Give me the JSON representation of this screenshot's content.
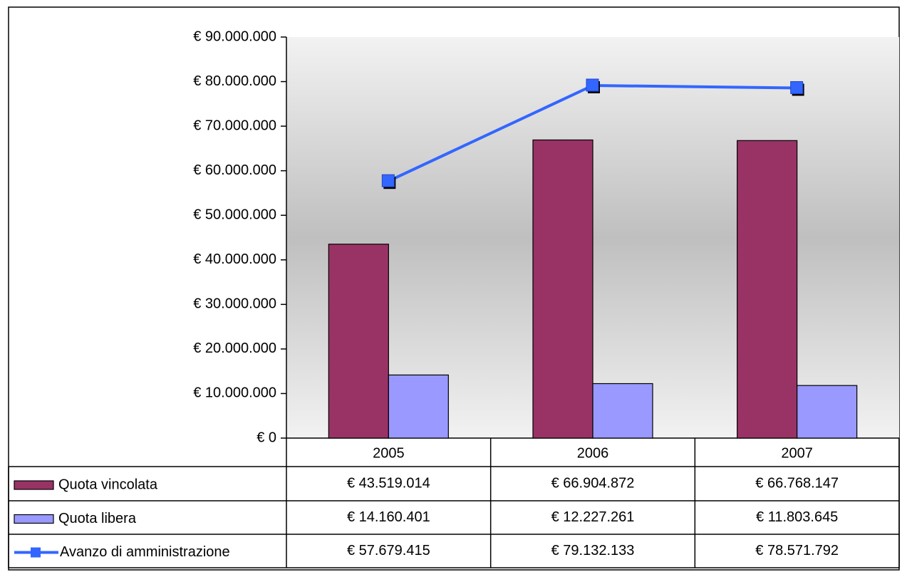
{
  "chart_data": {
    "type": "bar",
    "categories": [
      "2005",
      "2006",
      "2007"
    ],
    "series": [
      {
        "name": "Quota vincolata",
        "type": "bar",
        "color": "#993366",
        "values": [
          43519014,
          66904872,
          66768147
        ],
        "value_labels": [
          "€ 43.519.014",
          "€ 66.904.872",
          "€ 66.768.147"
        ]
      },
      {
        "name": "Quota libera",
        "type": "bar",
        "color": "#9999ff",
        "values": [
          14160401,
          12227261,
          11803645
        ],
        "value_labels": [
          "€ 14.160.401",
          "€ 12.227.261",
          "€ 11.803.645"
        ]
      },
      {
        "name": "Avanzo di amministrazione",
        "type": "line",
        "color": "#3366ff",
        "values": [
          57679415,
          79132133,
          78571792
        ],
        "value_labels": [
          "€ 57.679.415",
          "€ 79.132.133",
          "€ 78.571.792"
        ]
      }
    ],
    "ylim": [
      0,
      90000000
    ],
    "yticks": [
      {
        "value": 0,
        "label": "€ 0"
      },
      {
        "value": 10000000,
        "label": "€ 10.000.000"
      },
      {
        "value": 20000000,
        "label": "€ 20.000.000"
      },
      {
        "value": 30000000,
        "label": "€ 30.000.000"
      },
      {
        "value": 40000000,
        "label": "€ 40.000.000"
      },
      {
        "value": 50000000,
        "label": "€ 50.000.000"
      },
      {
        "value": 60000000,
        "label": "€ 60.000.000"
      },
      {
        "value": 70000000,
        "label": "€ 70.000.000"
      },
      {
        "value": 80000000,
        "label": "€ 80.000.000"
      },
      {
        "value": 90000000,
        "label": "€ 90.000.000"
      }
    ]
  }
}
